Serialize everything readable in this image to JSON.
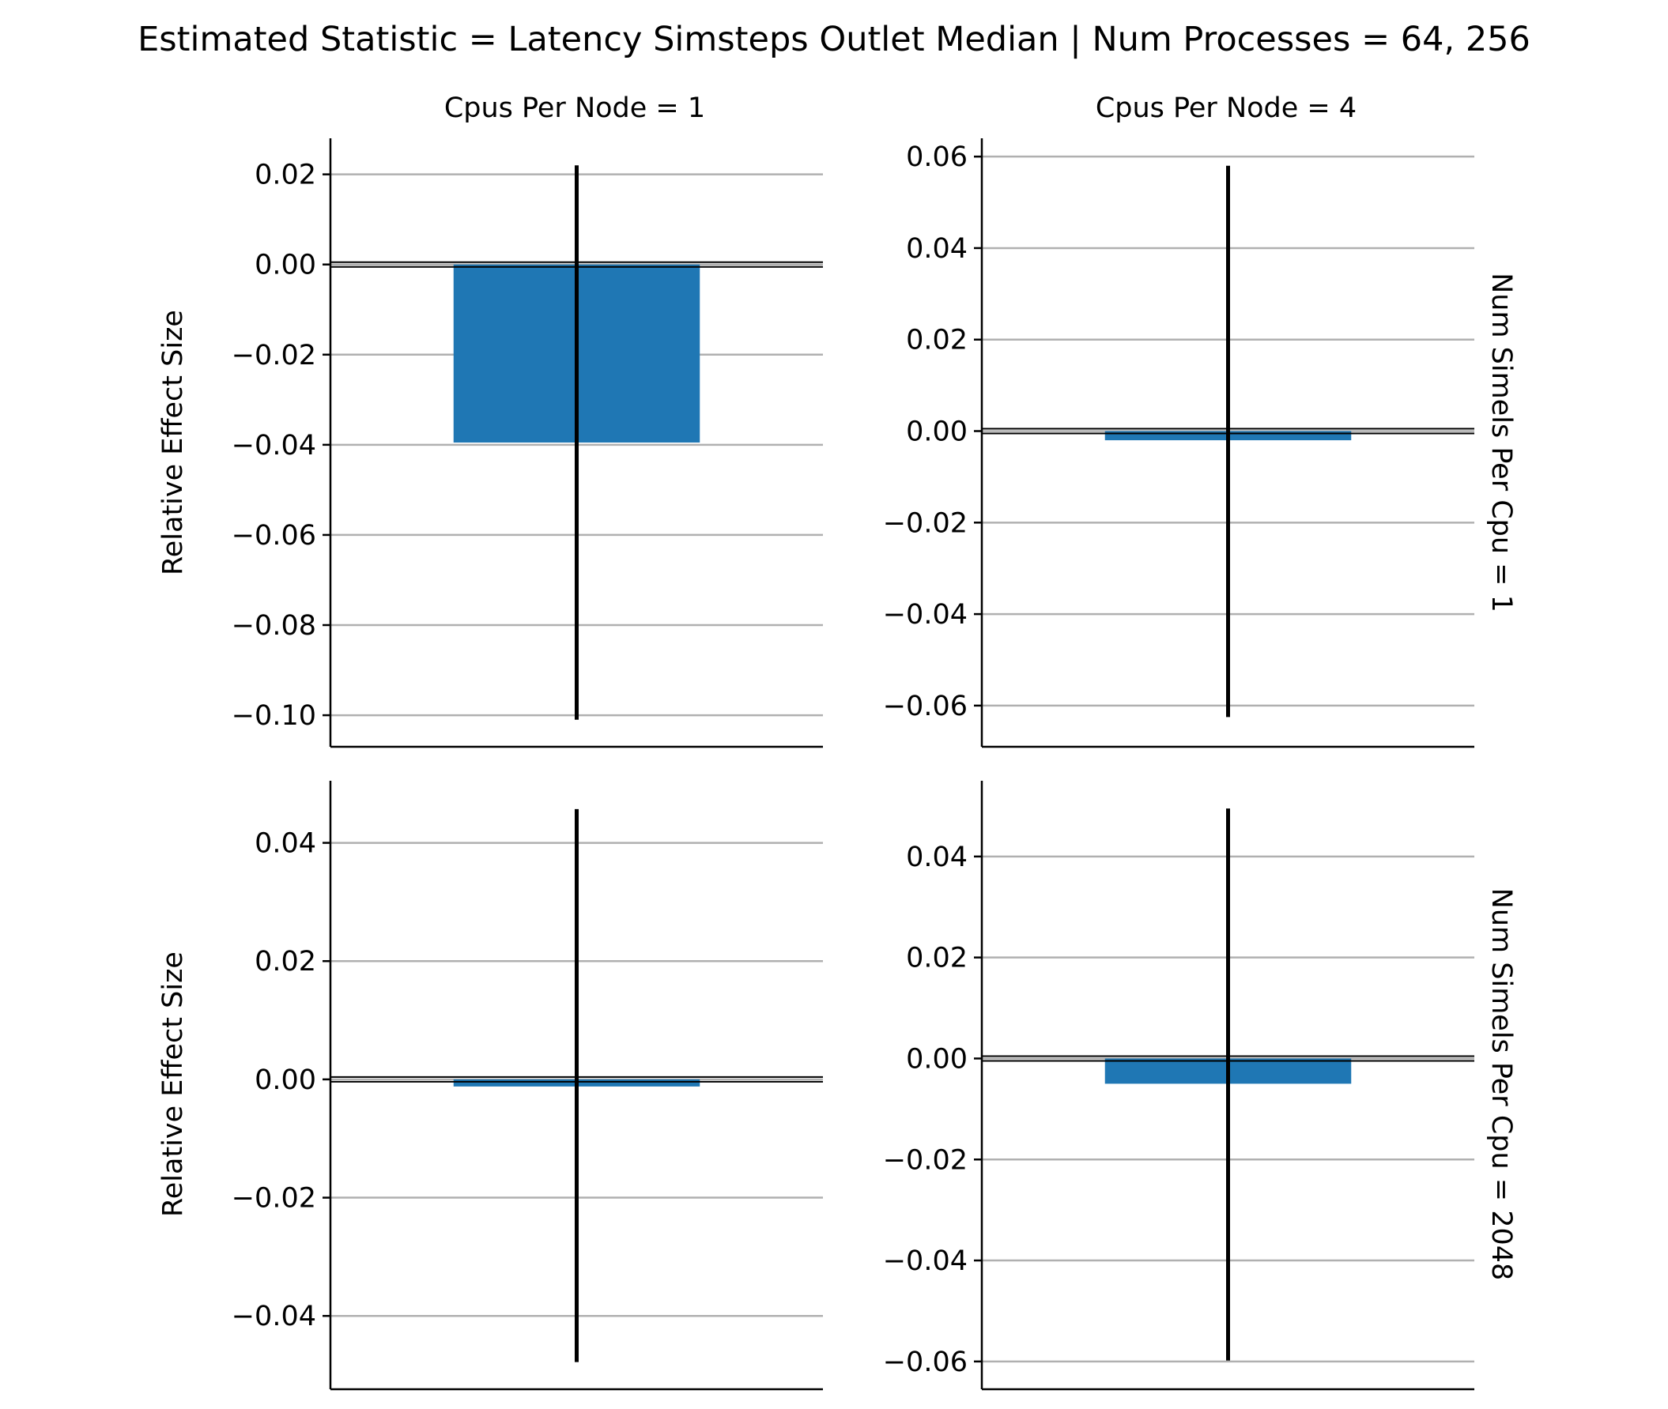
{
  "figure": {
    "title": "Estimated Statistic = Latency Simsteps Outlet Median | Num Processes = 64, 256",
    "col_titles": [
      "Cpus Per Node = 1",
      "Cpus Per Node = 4"
    ],
    "row_titles": [
      "Num Simels Per Cpu = 1",
      "Num Simels Per Cpu = 2048"
    ],
    "ylabel": "Relative Effect Size"
  },
  "colors": {
    "bar": "#1f77b4",
    "errorbar": "#000000",
    "grid": "#b0b0b0",
    "axis": "#000000"
  },
  "chart_data": [
    {
      "type": "bar",
      "panel": "Cpus Per Node = 1 | Num Simels Per Cpu = 1",
      "value": -0.0395,
      "ci": [
        -0.101,
        0.022
      ],
      "ylim": [
        -0.107,
        0.028
      ],
      "yticks": [
        0.02,
        0.0,
        -0.02,
        -0.04,
        -0.06,
        -0.08,
        -0.1
      ],
      "ytick_labels": [
        "0.02",
        "0.00",
        "−0.02",
        "−0.04",
        "−0.06",
        "−0.08",
        "−0.10"
      ],
      "grid": true
    },
    {
      "type": "bar",
      "panel": "Cpus Per Node = 4 | Num Simels Per Cpu = 1",
      "value": -0.002,
      "ci": [
        -0.0625,
        0.058
      ],
      "ylim": [
        -0.069,
        0.064
      ],
      "yticks": [
        0.06,
        0.04,
        0.02,
        0.0,
        -0.02,
        -0.04,
        -0.06
      ],
      "ytick_labels": [
        "0.06",
        "0.04",
        "0.02",
        "0.00",
        "−0.02",
        "−0.04",
        "−0.06"
      ],
      "grid": true
    },
    {
      "type": "bar",
      "panel": "Cpus Per Node = 1 | Num Simels Per Cpu = 2048",
      "value": -0.0012,
      "ci": [
        -0.0478,
        0.0457
      ],
      "ylim": [
        -0.0524,
        0.0505
      ],
      "yticks": [
        0.04,
        0.02,
        0.0,
        -0.02,
        -0.04
      ],
      "ytick_labels": [
        "0.04",
        "0.02",
        "0.00",
        "−0.02",
        "−0.04"
      ],
      "grid": true
    },
    {
      "type": "bar",
      "panel": "Cpus Per Node = 4 | Num Simels Per Cpu = 2048",
      "value": -0.005,
      "ci": [
        -0.0598,
        0.0495
      ],
      "ylim": [
        -0.0655,
        0.055
      ],
      "yticks": [
        0.04,
        0.02,
        0.0,
        -0.02,
        -0.04,
        -0.06
      ],
      "ytick_labels": [
        "0.04",
        "0.02",
        "0.00",
        "−0.02",
        "−0.04",
        "−0.06"
      ],
      "grid": true
    }
  ]
}
